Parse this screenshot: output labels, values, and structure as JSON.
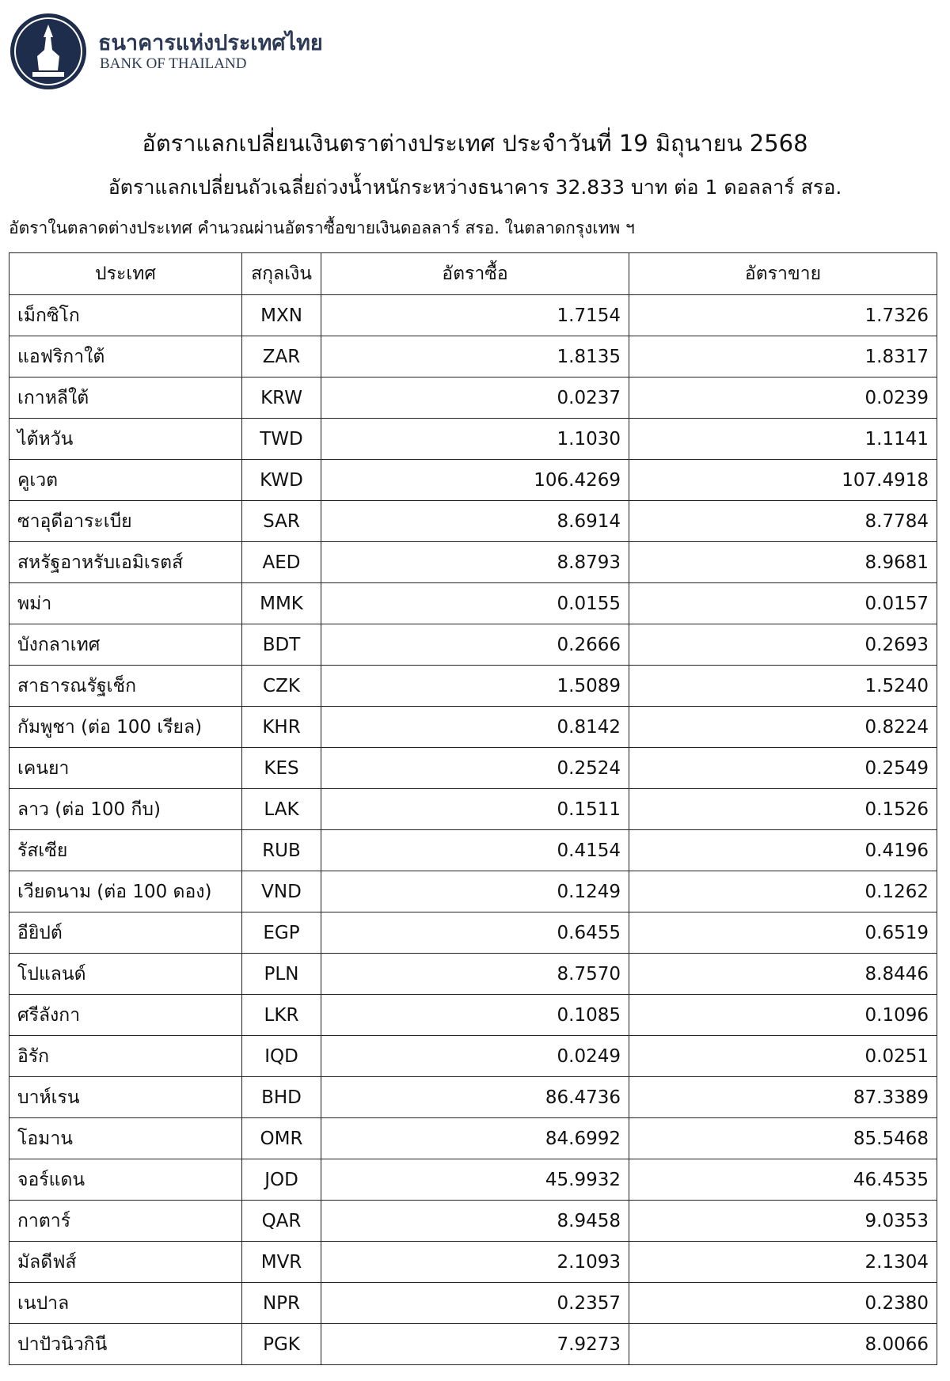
{
  "header": {
    "org_thai": "ธนาคารแห่งประเทศไทย",
    "org_english": "BANK OF THAILAND"
  },
  "title": "อัตราแลกเปลี่ยนเงินตราต่างประเทศ ประจำวันที่ 19 มิถุนายน 2568",
  "subtitle": "อัตราแลกเปลี่ยนถัวเฉลี่ยถ่วงน้ำหนักระหว่างธนาคาร 32.833 บาท ต่อ 1 ดอลลาร์ สรอ.",
  "note": "อัตราในตลาดต่างประเทศ คำนวณผ่านอัตราซื้อขายเงินดอลลาร์ สรอ. ในตลาดกรุงเทพ ฯ",
  "table": {
    "headers": [
      "ประเทศ",
      "สกุลเงิน",
      "อัตราซื้อ",
      "อัตราขาย"
    ],
    "rows": [
      [
        "เม็กซิโก",
        "MXN",
        "1.7154",
        "1.7326"
      ],
      [
        "แอฟริกาใต้",
        "ZAR",
        "1.8135",
        "1.8317"
      ],
      [
        "เกาหลีใต้",
        "KRW",
        "0.0237",
        "0.0239"
      ],
      [
        "ไต้หวัน",
        "TWD",
        "1.1030",
        "1.1141"
      ],
      [
        "คูเวต",
        "KWD",
        "106.4269",
        "107.4918"
      ],
      [
        "ซาอุดีอาระเบีย",
        "SAR",
        "8.6914",
        "8.7784"
      ],
      [
        "สหรัฐอาหรับเอมิเรตส์",
        "AED",
        "8.8793",
        "8.9681"
      ],
      [
        "พม่า",
        "MMK",
        "0.0155",
        "0.0157"
      ],
      [
        "บังกลาเทศ",
        "BDT",
        "0.2666",
        "0.2693"
      ],
      [
        "สาธารณรัฐเช็ก",
        "CZK",
        "1.5089",
        "1.5240"
      ],
      [
        "กัมพูชา (ต่อ 100 เรียล)",
        "KHR",
        "0.8142",
        "0.8224"
      ],
      [
        "เคนยา",
        "KES",
        "0.2524",
        "0.2549"
      ],
      [
        "ลาว (ต่อ 100 กีบ)",
        "LAK",
        "0.1511",
        "0.1526"
      ],
      [
        "รัสเซีย",
        "RUB",
        "0.4154",
        "0.4196"
      ],
      [
        "เวียดนาม (ต่อ 100 ดอง)",
        "VND",
        "0.1249",
        "0.1262"
      ],
      [
        "อียิปต์",
        "EGP",
        "0.6455",
        "0.6519"
      ],
      [
        "โปแลนด์",
        "PLN",
        "8.7570",
        "8.8446"
      ],
      [
        "ศรีลังกา",
        "LKR",
        "0.1085",
        "0.1096"
      ],
      [
        "อิรัก",
        "IQD",
        "0.0249",
        "0.0251"
      ],
      [
        "บาห์เรน",
        "BHD",
        "86.4736",
        "87.3389"
      ],
      [
        "โอมาน",
        "OMR",
        "84.6992",
        "85.5468"
      ],
      [
        "จอร์แดน",
        "JOD",
        "45.9932",
        "46.4535"
      ],
      [
        "กาตาร์",
        "QAR",
        "8.9458",
        "9.0353"
      ],
      [
        "มัลดีฟส์",
        "MVR",
        "2.1093",
        "2.1304"
      ],
      [
        "เนปาล",
        "NPR",
        "0.2357",
        "0.2380"
      ],
      [
        "ปาปัวนิวกินี",
        "PGK",
        "7.9273",
        "8.0066"
      ]
    ]
  }
}
